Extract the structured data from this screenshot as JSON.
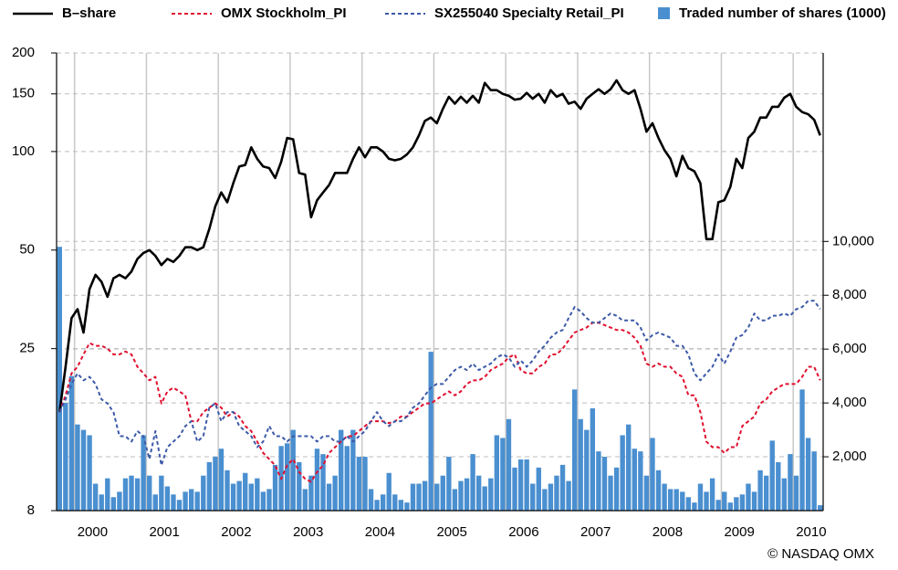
{
  "chart_data": {
    "type": "line",
    "source": "© NASDAQ OMX",
    "categories": [
      null,
      null,
      null,
      "2000",
      null,
      null,
      null,
      null,
      null,
      null,
      null,
      null,
      null,
      null,
      null,
      "2001",
      null,
      null,
      null,
      null,
      null,
      null,
      null,
      null,
      null,
      null,
      null,
      "2002",
      null,
      null,
      null,
      null,
      null,
      null,
      null,
      null,
      null,
      null,
      null,
      "2003",
      null,
      null,
      null,
      null,
      null,
      null,
      null,
      null,
      null,
      null,
      null,
      "2004",
      null,
      null,
      null,
      null,
      null,
      null,
      null,
      null,
      null,
      null,
      null,
      "2005",
      null,
      null,
      null,
      null,
      null,
      null,
      null,
      null,
      null,
      null,
      null,
      "2006",
      null,
      null,
      null,
      null,
      null,
      null,
      null,
      null,
      null,
      null,
      null,
      "2007",
      null,
      null,
      null,
      null,
      null,
      null,
      null,
      null,
      null,
      null,
      null,
      "2008",
      null,
      null,
      null,
      null,
      null,
      null,
      null,
      null,
      null,
      null,
      null,
      "2009",
      null,
      null,
      null,
      null,
      null,
      null,
      null,
      null,
      null,
      null,
      null,
      "2010",
      null,
      null,
      null,
      null
    ],
    "ylim": [
      8,
      200
    ],
    "log_y": true,
    "yticks": [
      8,
      25,
      50,
      100,
      150,
      200
    ],
    "y2lim": [
      0,
      17000
    ],
    "y2ticks": [
      {
        "value": 2000,
        "label": "2,000"
      },
      {
        "value": 4000,
        "label": "4,000"
      },
      {
        "value": 6000,
        "label": "6,000"
      },
      {
        "value": 8000,
        "label": "8,000"
      },
      {
        "value": 10000,
        "label": "10,000"
      }
    ],
    "grid": true,
    "series": [
      {
        "name": "Traded number of shares (1000)",
        "type": "bar",
        "axis": "y2",
        "color": "#4a8fd0",
        "values": [
          9800,
          4000,
          5000,
          3200,
          3000,
          2800,
          1000,
          600,
          1200,
          500,
          700,
          1200,
          1300,
          1200,
          2800,
          1300,
          600,
          1300,
          900,
          600,
          400,
          700,
          800,
          700,
          1300,
          1800,
          2000,
          2300,
          1500,
          1000,
          1100,
          1400,
          1000,
          1200,
          700,
          800,
          1700,
          2400,
          2500,
          3000,
          1800,
          800,
          1300,
          2300,
          2100,
          1000,
          1300,
          3000,
          2400,
          3000,
          2000,
          2000,
          800,
          400,
          600,
          1400,
          600,
          400,
          300,
          1000,
          1000,
          1100,
          5900,
          1000,
          1300,
          2000,
          800,
          1100,
          1200,
          2100,
          1300,
          900,
          1200,
          2800,
          2700,
          3400,
          1600,
          1900,
          1900,
          1000,
          1600,
          800,
          1000,
          1300,
          1700,
          1100,
          4500,
          3400,
          3000,
          3800,
          2200,
          2000,
          1300,
          1600,
          2800,
          3200,
          2300,
          2200,
          1300,
          2700,
          1500,
          1000,
          800,
          800,
          700,
          500,
          300,
          1000,
          700,
          1200,
          400,
          700,
          300,
          500,
          600,
          1000,
          700,
          1500,
          1300,
          2600,
          1800,
          1200,
          2100,
          1300,
          4500,
          2700,
          2200,
          200
        ]
      },
      {
        "name": "B–share",
        "color": "#000000",
        "dash": false,
        "values": [
          16,
          22,
          31,
          33,
          28,
          38,
          42,
          40,
          36,
          41,
          42,
          41,
          43,
          47,
          49,
          50,
          48,
          45,
          47,
          46,
          48,
          51,
          51,
          50,
          51,
          58,
          68,
          75,
          70,
          80,
          90,
          91,
          103,
          95,
          90,
          89,
          83,
          93,
          110,
          109,
          86,
          85,
          63,
          71,
          75,
          79,
          86,
          86,
          86,
          95,
          103,
          96,
          103,
          103,
          100,
          95,
          94,
          95,
          98,
          103,
          112,
          124,
          127,
          122,
          135,
          147,
          140,
          147,
          141,
          148,
          141,
          162,
          154,
          154,
          150,
          148,
          144,
          145,
          151,
          145,
          150,
          141,
          154,
          147,
          150,
          140,
          142,
          135,
          145,
          150,
          155,
          150,
          155,
          165,
          154,
          150,
          154,
          135,
          115,
          122,
          110,
          101,
          95,
          84,
          97,
          89,
          87,
          80,
          54,
          54,
          70,
          71,
          78,
          95,
          89,
          110,
          115,
          127,
          127,
          137,
          137,
          146,
          150,
          137,
          132,
          130,
          125,
          112
        ]
      },
      {
        "name": "OMX Stockholm_PI",
        "color": "#e0102f",
        "dash": true,
        "values": [
          16,
          18,
          21,
          22,
          24,
          26,
          25.5,
          25.5,
          25,
          24,
          24,
          24.5,
          24,
          22,
          21,
          20,
          20.5,
          17,
          18.5,
          19,
          18.5,
          18,
          15,
          15,
          16,
          16.5,
          17,
          16.5,
          15.5,
          16,
          15.5,
          14.5,
          14,
          13,
          12,
          11.5,
          11,
          10,
          11,
          11.5,
          10.5,
          10,
          9.8,
          10.5,
          11,
          12,
          12.5,
          13,
          13.5,
          13.5,
          14,
          14.5,
          15,
          15,
          15,
          14.8,
          15,
          15.5,
          15.5,
          16,
          16.5,
          17,
          17,
          17.5,
          18,
          18.5,
          18,
          18.5,
          19.5,
          20,
          20,
          20.5,
          21.5,
          22,
          22.5,
          23.5,
          24,
          21.5,
          21,
          21,
          22,
          22.5,
          24,
          24,
          25,
          26.5,
          28,
          28.5,
          29,
          30,
          30,
          29.5,
          29,
          28.5,
          28.5,
          28,
          27,
          25.5,
          22.5,
          22,
          22.5,
          22,
          22,
          21,
          20.5,
          18,
          18,
          16,
          13,
          12.5,
          12.5,
          12,
          12.5,
          12.5,
          14.5,
          15,
          15.5,
          17,
          17.5,
          18.5,
          19,
          19.5,
          19.5,
          19.5,
          20.5,
          22,
          22,
          20
        ]
      },
      {
        "name": "SX255040 Specialty Retail_PI",
        "color": "#3d5aa8",
        "dash": true,
        "values": [
          16,
          17.5,
          19.5,
          21,
          20,
          20.5,
          19.5,
          17.5,
          17,
          16,
          13.5,
          13.5,
          13,
          14,
          13.5,
          11.5,
          14,
          11,
          12.5,
          13,
          13.5,
          14.5,
          15,
          13,
          13.5,
          16.5,
          17,
          15,
          16,
          16,
          14.5,
          14,
          13.5,
          12.5,
          13,
          14.5,
          13.5,
          13.5,
          13,
          13.5,
          13.5,
          13.5,
          13.5,
          13,
          13.5,
          13.5,
          13,
          13,
          13.5,
          13,
          13.5,
          14,
          15,
          16,
          15,
          14.5,
          15,
          15,
          15.5,
          16.5,
          17,
          18,
          19,
          19.5,
          19.5,
          20.5,
          21.5,
          22,
          21.5,
          22.5,
          21.5,
          22,
          22.5,
          23.5,
          24,
          23.5,
          22,
          23,
          22,
          23,
          24.5,
          25.5,
          27,
          28,
          28.5,
          31,
          33.5,
          32.5,
          31,
          30,
          30,
          31,
          32,
          31.5,
          30.5,
          30.5,
          30.5,
          29,
          26.5,
          27.5,
          28,
          27.5,
          27,
          25.5,
          25.5,
          24,
          21,
          20,
          21,
          22,
          24,
          22.5,
          24.5,
          27,
          27.5,
          29,
          32,
          30.5,
          30.5,
          31.5,
          31.5,
          32,
          31.5,
          33,
          33.5,
          35,
          35,
          33
        ]
      }
    ]
  }
}
